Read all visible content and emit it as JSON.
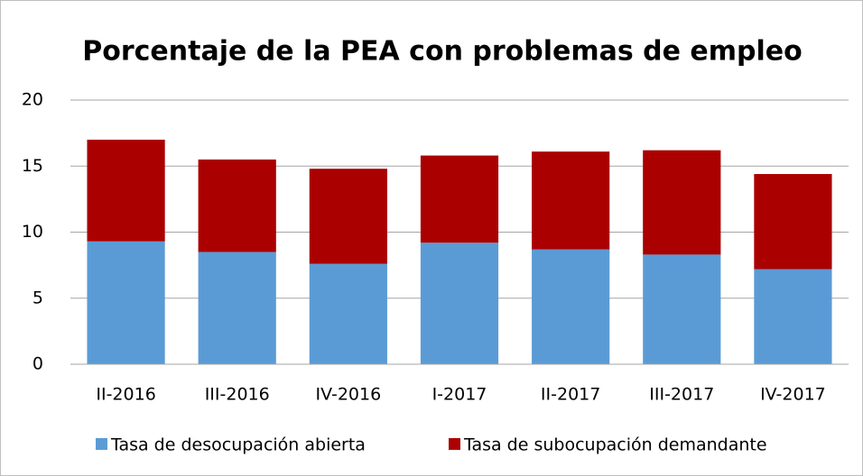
{
  "chart_data": {
    "type": "bar",
    "stacked": true,
    "title": "Porcentaje de la PEA con problemas de empleo",
    "categories": [
      "II-2016",
      "III-2016",
      "IV-2016",
      "I-2017",
      "II-2017",
      "III-2017",
      "IV-2017"
    ],
    "series": [
      {
        "name": "Tasa de desocupación abierta",
        "color": "#5b9bd5",
        "values": [
          9.3,
          8.5,
          7.6,
          9.2,
          8.7,
          8.3,
          7.2
        ]
      },
      {
        "name": "Tasa de subocupación demandante",
        "color": "#aa0000",
        "values": [
          7.7,
          7.0,
          7.2,
          6.6,
          7.4,
          7.9,
          7.2
        ]
      }
    ],
    "ylim": [
      0,
      20
    ],
    "yticks": [
      0,
      5,
      10,
      15,
      20
    ],
    "grid": true,
    "legend": "bottom"
  }
}
